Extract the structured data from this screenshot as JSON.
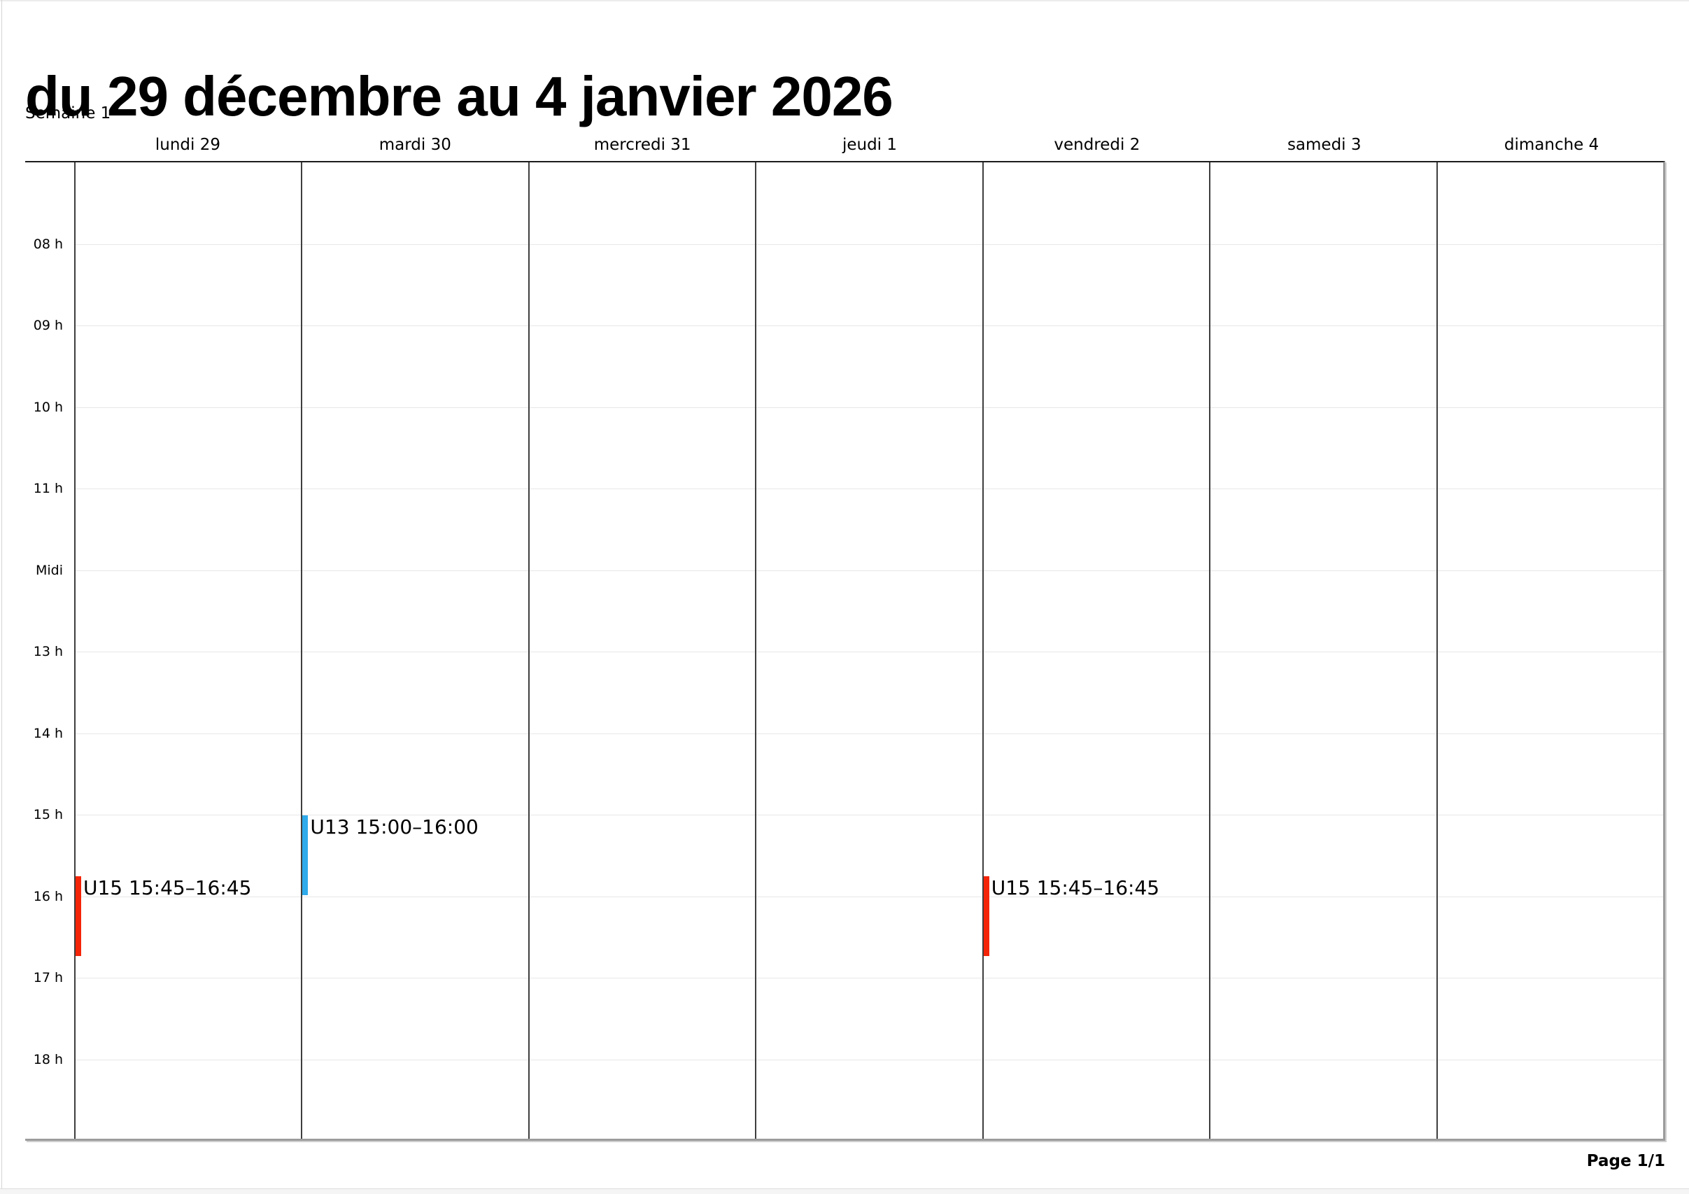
{
  "header": {
    "title": "du 29 décembre au 4 janvier 2026",
    "subtitle": "Semaine 1"
  },
  "calendar": {
    "day_headers": [
      "lundi 29",
      "mardi 30",
      "mercredi 31",
      "jeudi 1",
      "vendredi 2",
      "samedi 3",
      "dimanche 4"
    ],
    "time_labels": [
      "08 h",
      "09 h",
      "10 h",
      "11 h",
      "Midi",
      "13 h",
      "14 h",
      "15 h",
      "16 h",
      "17 h",
      "18 h"
    ],
    "events": [
      {
        "day_index": 0,
        "label": "U15 15:45–16:45",
        "start": "15:45",
        "end": "16:45",
        "color": "#f42408"
      },
      {
        "day_index": 1,
        "label": "U13 15:00–16:00",
        "start": "15:00",
        "end": "16:00",
        "color": "#2faaea"
      },
      {
        "day_index": 4,
        "label": "U15 15:45–16:45",
        "start": "15:45",
        "end": "16:45",
        "color": "#f42408"
      }
    ],
    "event_colors": {
      "red": "#f42408",
      "blue": "#2faaea"
    }
  },
  "footer": {
    "page_label": "Page 1/1"
  }
}
